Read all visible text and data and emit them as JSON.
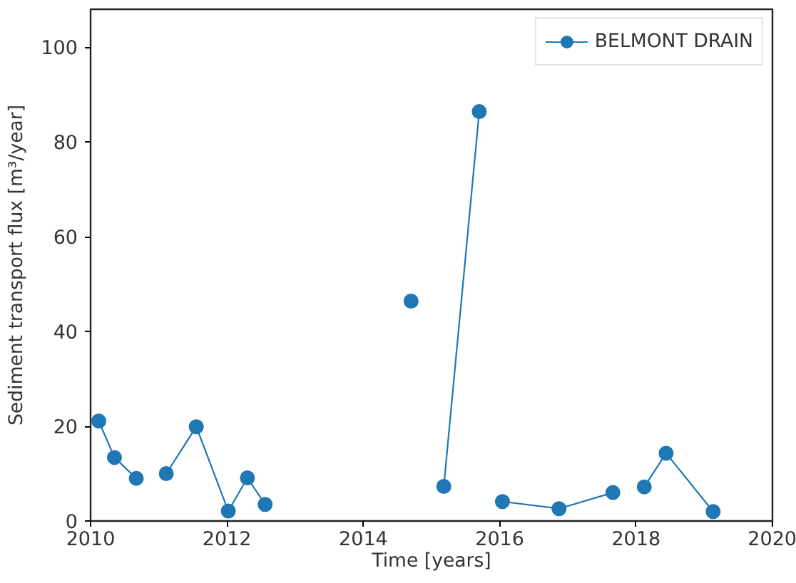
{
  "chart_data": {
    "type": "line",
    "xlabel": "Time [years]",
    "ylabel": "Sediment transport flux [m³/year]",
    "x": [
      2010.12,
      2010.35,
      2010.67,
      2010.9,
      2011.11,
      2011.55,
      2012.02,
      2012.3,
      2012.56,
      2013.6,
      2014.7,
      2014.95,
      2015.18,
      2015.7,
      2015.87,
      2016.04,
      2016.87,
      2017.66,
      2017.9,
      2018.12,
      2018.44,
      2019.13
    ],
    "series": [
      {
        "name": "BELMONT DRAIN",
        "color": "#1f77b4",
        "values": [
          21.1,
          13.4,
          9.0,
          null,
          10.0,
          19.9,
          2.1,
          9.1,
          3.5,
          null,
          46.4,
          null,
          7.3,
          86.4,
          null,
          4.1,
          2.6,
          6.0,
          null,
          7.2,
          14.3,
          2.0
        ]
      }
    ],
    "xlim": [
      2010,
      2020
    ],
    "ylim": [
      0,
      108
    ],
    "xticks": [
      2010,
      2012,
      2014,
      2016,
      2018,
      2020
    ],
    "yticks": [
      0,
      20,
      40,
      60,
      80,
      100
    ],
    "legend": "top right",
    "marker": "circle",
    "line_style": "solid",
    "grid": false
  }
}
